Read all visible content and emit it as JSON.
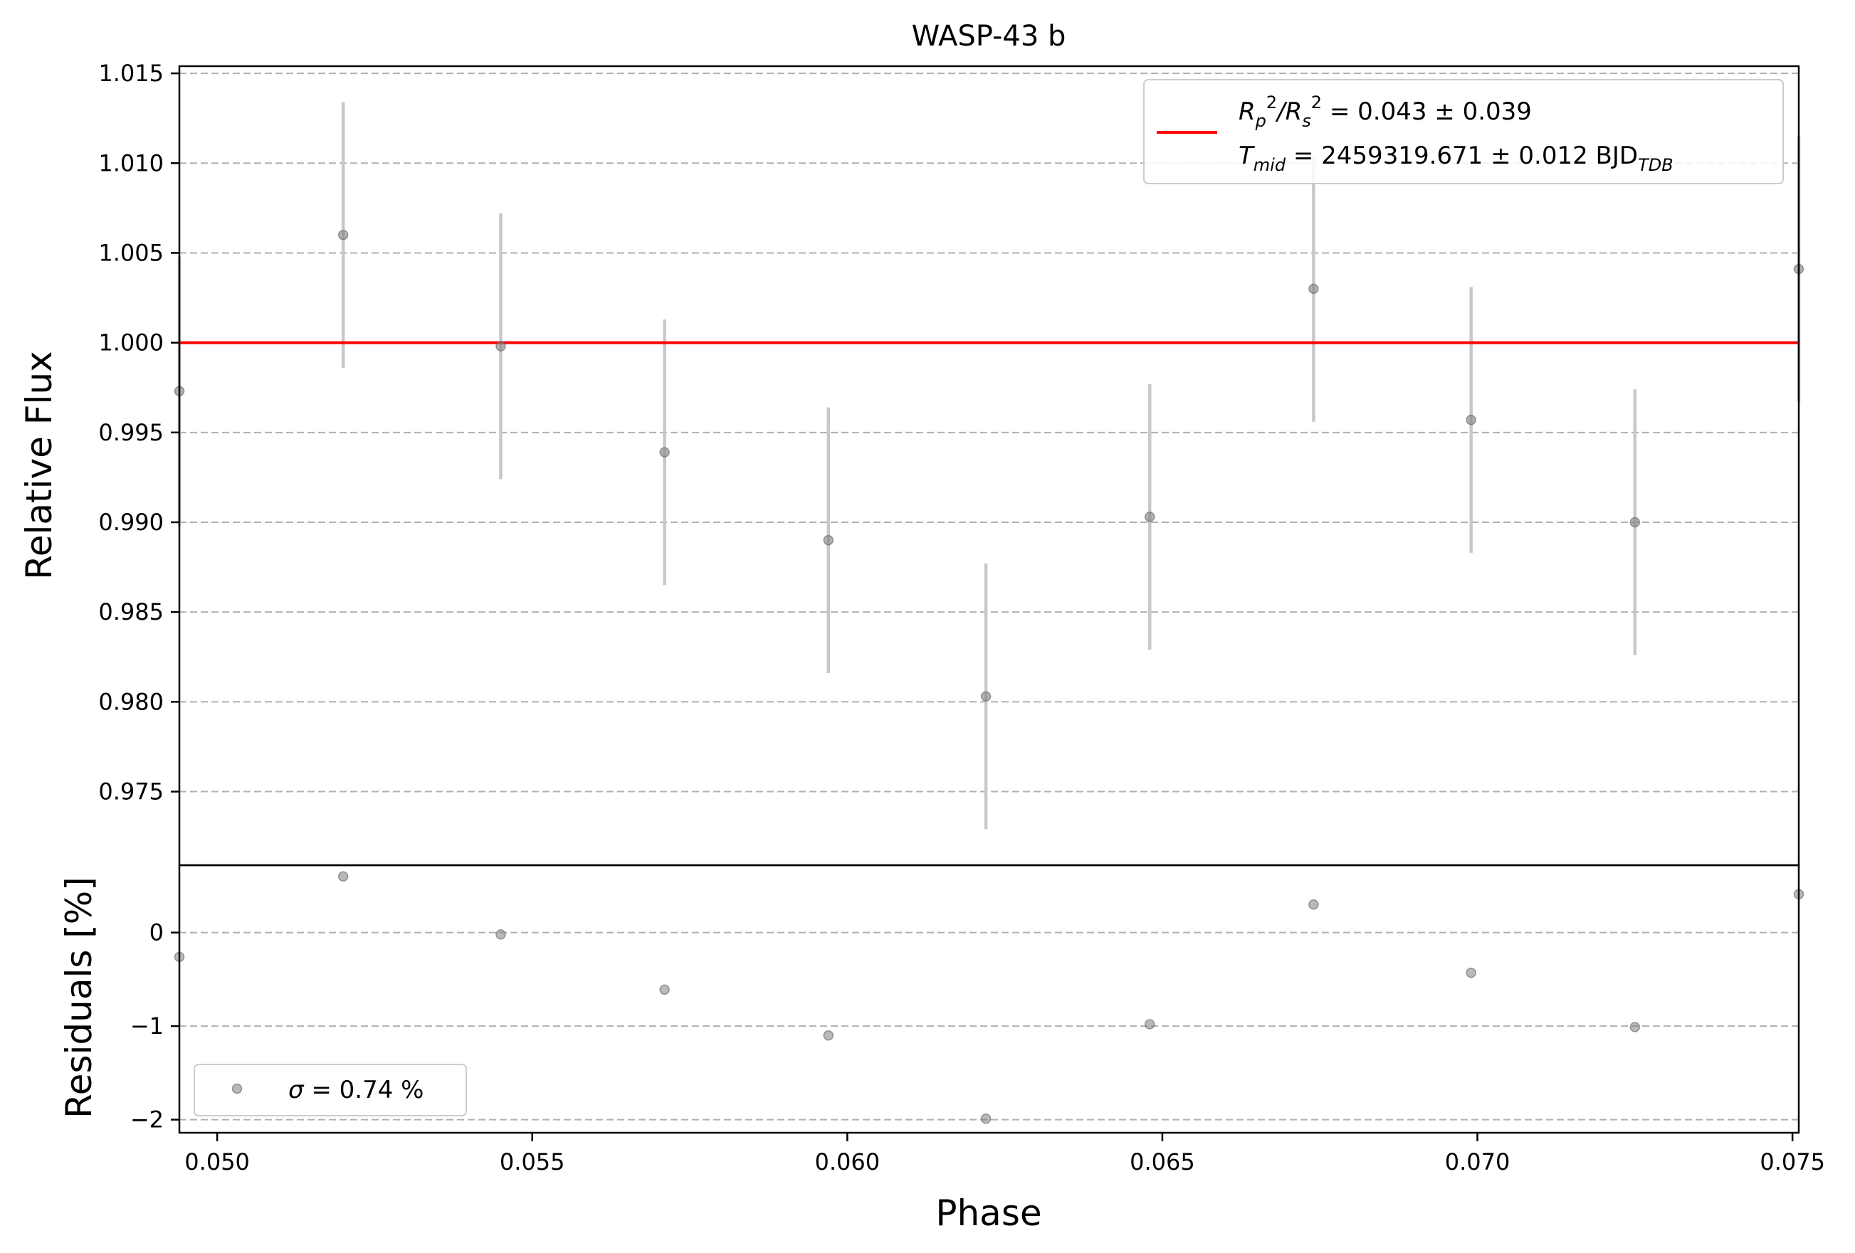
{
  "chart_data": {
    "type": "scatter",
    "title": "WASP-43 b",
    "xlabel": "Phase",
    "xlim": [
      0.0494,
      0.0751
    ],
    "xticks": [
      0.05,
      0.055,
      0.06,
      0.065,
      0.07,
      0.075
    ],
    "xtick_labels": [
      "0.050",
      "0.055",
      "0.060",
      "0.065",
      "0.070",
      "0.075"
    ],
    "top_panel": {
      "ylabel": "Relative Flux",
      "ylim": [
        0.9709,
        1.0154
      ],
      "yticks": [
        0.975,
        0.98,
        0.985,
        0.99,
        0.995,
        1.0,
        1.005,
        1.01,
        1.015
      ],
      "ytick_labels": [
        "0.975",
        "0.980",
        "0.985",
        "0.990",
        "0.995",
        "1.000",
        "1.005",
        "1.010",
        "1.015"
      ],
      "grid": true,
      "model": {
        "name": "transit model",
        "y": 1.0,
        "color": "#ff0000"
      },
      "points": [
        {
          "x": 0.0494,
          "y": 0.9973,
          "yerr": 0.0075
        },
        {
          "x": 0.052,
          "y": 1.006,
          "yerr": 0.0074
        },
        {
          "x": 0.0545,
          "y": 0.9998,
          "yerr": 0.0074
        },
        {
          "x": 0.0571,
          "y": 0.9939,
          "yerr": 0.0074
        },
        {
          "x": 0.0597,
          "y": 0.989,
          "yerr": 0.0074
        },
        {
          "x": 0.0622,
          "y": 0.9803,
          "yerr": 0.0074
        },
        {
          "x": 0.0648,
          "y": 0.9903,
          "yerr": 0.0074
        },
        {
          "x": 0.0674,
          "y": 1.003,
          "yerr": 0.0074
        },
        {
          "x": 0.0699,
          "y": 0.9957,
          "yerr": 0.0074
        },
        {
          "x": 0.0725,
          "y": 0.99,
          "yerr": 0.0074
        },
        {
          "x": 0.0751,
          "y": 1.0041,
          "yerr": 0.0074
        }
      ],
      "point_color": "#808080",
      "errorbar_color": "#c8c8c8",
      "legend": {
        "placement": "top-right",
        "line1": {
          "parts": [
            "R",
            "p",
            "2",
            "/R",
            "s",
            "2",
            " = 0.043 ± 0.039"
          ]
        },
        "line2": {
          "parts": [
            "T",
            "mid",
            " = 2459319.671 ± 0.012 BJD",
            "TDB"
          ]
        }
      }
    },
    "bottom_panel": {
      "ylabel": "Residuals [%]",
      "ylim": [
        -2.14,
        0.72
      ],
      "yticks": [
        -2,
        -1,
        0
      ],
      "ytick_labels": [
        "−2",
        "−1",
        "0"
      ],
      "grid": true,
      "points": [
        {
          "x": 0.0494,
          "y": -0.26
        },
        {
          "x": 0.052,
          "y": 0.6
        },
        {
          "x": 0.0545,
          "y": -0.02
        },
        {
          "x": 0.0571,
          "y": -0.61
        },
        {
          "x": 0.0597,
          "y": -1.1
        },
        {
          "x": 0.0622,
          "y": -1.99
        },
        {
          "x": 0.0648,
          "y": -0.98
        },
        {
          "x": 0.0674,
          "y": 0.3
        },
        {
          "x": 0.0699,
          "y": -0.43
        },
        {
          "x": 0.0725,
          "y": -1.01
        },
        {
          "x": 0.0751,
          "y": 0.41
        }
      ],
      "legend": {
        "placement": "bottom-left",
        "parts": [
          "σ",
          " = 0.74 %"
        ]
      }
    }
  }
}
